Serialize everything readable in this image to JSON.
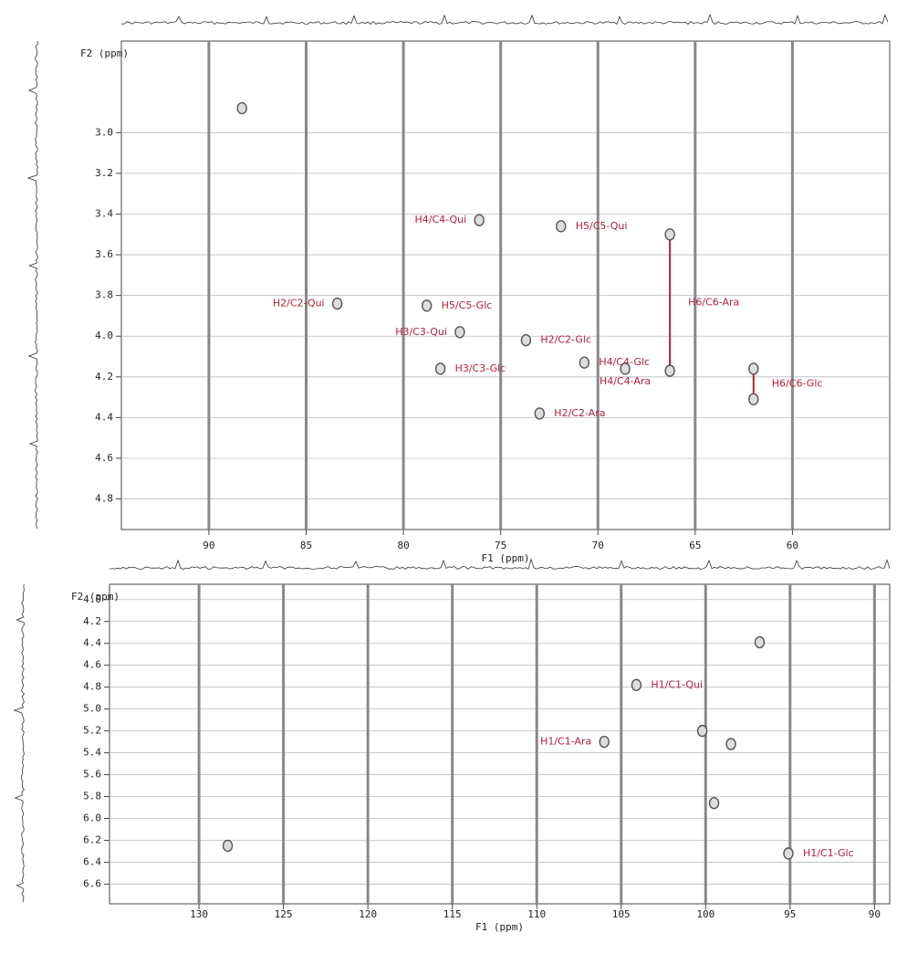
{
  "chart_data": [
    {
      "type": "scatter",
      "x_label": "F1 (ppm)",
      "y_label": "F2 (ppm)",
      "xlim": [
        94.5,
        55
      ],
      "ylim": [
        2.55,
        4.95
      ],
      "xticks": [
        90,
        85,
        80,
        75,
        70,
        65,
        60
      ],
      "yticks": [
        {
          "value": 3,
          "label": "3.0"
        },
        3.2,
        3.4,
        3.6,
        3.8,
        {
          "value": 4,
          "label": "4.0"
        },
        4.2,
        4.4,
        4.6,
        4.8
      ],
      "grid": true,
      "color": "#555555",
      "label_color": "#b0203a",
      "peaks": [
        {
          "x": 88.3,
          "y": 2.88
        },
        {
          "label": "H4/C4-Qui",
          "x": 76.1,
          "y": 3.43
        },
        {
          "label": "H5/C5-Qui",
          "x": 71.9,
          "y": 3.46
        },
        {
          "label": "H6/C6-Ara",
          "x": 66.3,
          "y": [
            3.5,
            4.17
          ]
        },
        {
          "label": "H2/C2-Qui",
          "x": 83.4,
          "y": 3.84
        },
        {
          "label": "H5/C5-Glc",
          "x": 78.8,
          "y": 3.85
        },
        {
          "label": "H3/C3-Qui",
          "x": 77.1,
          "y": 3.98
        },
        {
          "label": "H2/C2-Glc",
          "x": 73.7,
          "y": 4.02
        },
        {
          "label": "H4/C4-Glc",
          "x": 70.7,
          "y": 4.13
        },
        {
          "label": "H4/C4-Ara",
          "x": 68.6,
          "y": 4.16
        },
        {
          "label": "H3/C3-Glc",
          "x": 78.1,
          "y": 4.16
        },
        {
          "label": "H6/C6-Glc",
          "x": 62.0,
          "y": [
            4.16,
            4.31
          ]
        },
        {
          "label": "H2/C2-Ara",
          "x": 73.0,
          "y": 4.38
        }
      ]
    },
    {
      "type": "scatter",
      "x_label": "F1 (ppm)",
      "y_label": "F2 (ppm)",
      "xlim": [
        135.3,
        89.1
      ],
      "ylim": [
        3.86,
        6.78
      ],
      "xticks": [
        130,
        125,
        120,
        115,
        110,
        105,
        100,
        95,
        90
      ],
      "yticks": [
        {
          "value": 4,
          "label": "4.0"
        },
        4.2,
        4.4,
        4.6,
        4.8,
        {
          "value": 5,
          "label": "5.0"
        },
        5.2,
        5.4,
        5.6,
        5.8,
        {
          "value": 6,
          "label": "6.0"
        },
        6.2,
        6.4,
        6.6
      ],
      "grid": true,
      "color": "#555555",
      "label_color": "#b0203a",
      "peaks": [
        {
          "x": 128.3,
          "y": 6.25
        },
        {
          "x": 96.8,
          "y": 4.39
        },
        {
          "label": "H1/C1-Qui",
          "x": 104.1,
          "y": 4.78
        },
        {
          "label": "H1/C1-Ara",
          "x": 106.0,
          "y": 5.3
        },
        {
          "label": "H1/C1-Glc",
          "x": 95.1,
          "y": 6.32
        },
        {
          "x": 100.2,
          "y": 5.2
        },
        {
          "x": 98.5,
          "y": 5.32
        },
        {
          "x": 99.5,
          "y": 5.86
        }
      ]
    }
  ]
}
